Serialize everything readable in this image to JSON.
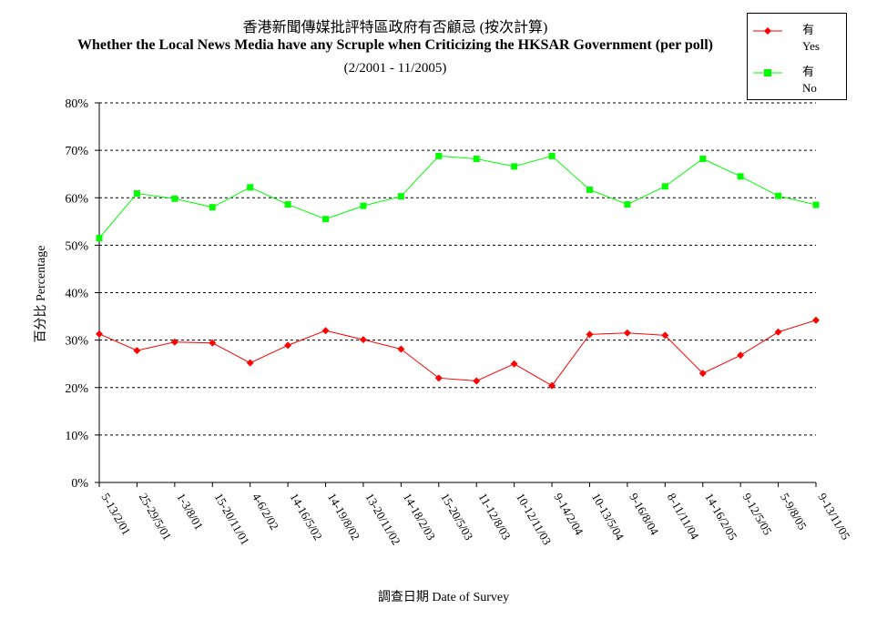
{
  "title": "香港新聞傳媒批評特區政府有否顧忌 (按次計算)",
  "subtitle": "Whether the Local News Media have any Scruple when Criticizing the HKSAR Government (per poll)",
  "period": "(2/2001 - 11/2005)",
  "chart_data": {
    "type": "line",
    "ylabel": "百分比 Percentage",
    "xlabel": "調查日期 Date of Survey",
    "ylim": [
      0,
      80
    ],
    "yticks": [
      "0%",
      "10%",
      "20%",
      "30%",
      "40%",
      "50%",
      "60%",
      "70%",
      "80%"
    ],
    "grid": true,
    "legend_position": "top-right",
    "categories": [
      "5-13/2/01",
      "25-29/5/01",
      "1-3/8/01",
      "15-20/11/01",
      "4-6/2/02",
      "14-16/5/02",
      "14-19/8/02",
      "13-20/11/02",
      "14-18/2/03",
      "15-20/5/03",
      "11-12/8/03",
      "10-12/11/03",
      "9-14/2/04",
      "10-13/5/04",
      "9-16/8/04",
      "8-11/11/04",
      "14-16/2/05",
      "9-12/5/05",
      "5-9/8/05",
      "9-13/11/05"
    ],
    "series": [
      {
        "name": "有",
        "name_en": "Yes",
        "color": "#ff0000",
        "marker": "diamond",
        "values": [
          31.3,
          27.8,
          29.6,
          29.4,
          25.2,
          28.9,
          32.0,
          30.1,
          28.1,
          22.0,
          21.4,
          25.0,
          20.4,
          31.2,
          31.5,
          31.0,
          23.0,
          26.8,
          31.7,
          34.2
        ]
      },
      {
        "name": "有",
        "name_en": "No",
        "color": "#00ff00",
        "marker": "square",
        "values": [
          51.5,
          60.9,
          59.8,
          58.0,
          62.2,
          58.6,
          55.5,
          58.3,
          60.3,
          68.8,
          68.2,
          66.6,
          68.8,
          61.7,
          58.6,
          62.4,
          68.2,
          64.5,
          60.4,
          58.5
        ]
      }
    ]
  }
}
